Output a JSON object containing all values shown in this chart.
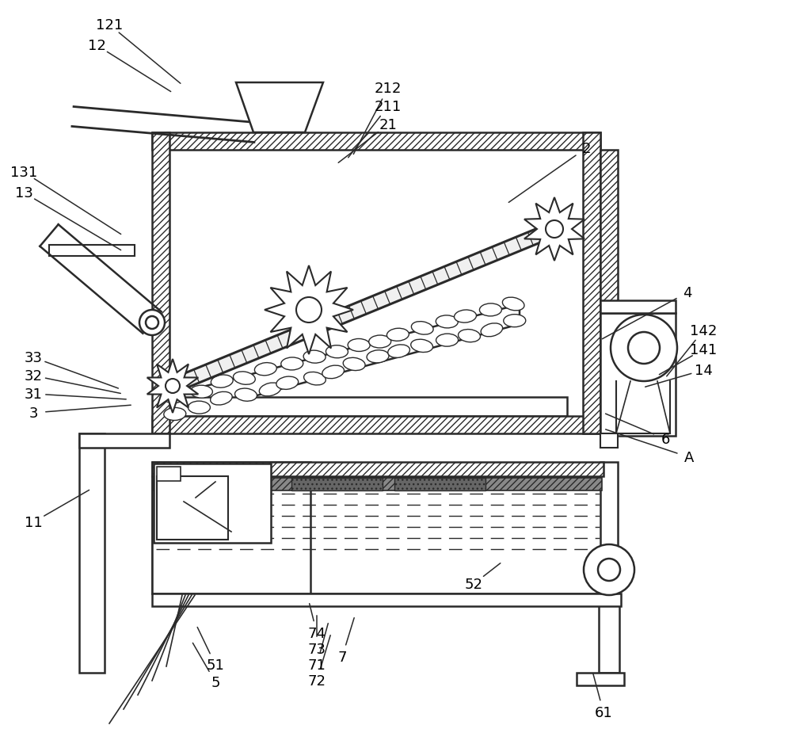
{
  "bg_color": "#ffffff",
  "lc": "#2a2a2a",
  "figsize": [
    10.0,
    9.45
  ],
  "dpi": 100,
  "labels": [
    [
      "121",
      138,
      32,
      230,
      108
    ],
    [
      "12",
      122,
      58,
      218,
      118
    ],
    [
      "131",
      30,
      218,
      155,
      298
    ],
    [
      "13",
      30,
      244,
      155,
      318
    ],
    [
      "2",
      740,
      188,
      640,
      258
    ],
    [
      "212",
      490,
      112,
      445,
      198
    ],
    [
      "211",
      490,
      135,
      438,
      202
    ],
    [
      "21",
      490,
      158,
      425,
      208
    ],
    [
      "4",
      868,
      370,
      758,
      430
    ],
    [
      "142",
      888,
      418,
      840,
      478
    ],
    [
      "141",
      888,
      442,
      830,
      475
    ],
    [
      "14",
      888,
      468,
      812,
      490
    ],
    [
      "33",
      42,
      452,
      152,
      492
    ],
    [
      "32",
      42,
      475,
      155,
      498
    ],
    [
      "31",
      42,
      498,
      162,
      505
    ],
    [
      "3",
      42,
      522,
      168,
      512
    ],
    [
      "11",
      42,
      660,
      115,
      618
    ],
    [
      "6",
      840,
      555,
      762,
      522
    ],
    [
      "A",
      870,
      578,
      762,
      542
    ],
    [
      "52",
      598,
      738,
      634,
      710
    ],
    [
      "51",
      272,
      840,
      248,
      790
    ],
    [
      "5",
      272,
      862,
      242,
      810
    ],
    [
      "74",
      400,
      800,
      390,
      760
    ],
    [
      "73",
      400,
      820,
      400,
      775
    ],
    [
      "71",
      400,
      840,
      415,
      785
    ],
    [
      "7",
      432,
      830,
      448,
      778
    ],
    [
      "72",
      400,
      860,
      418,
      800
    ],
    [
      "61",
      762,
      900,
      748,
      848
    ]
  ]
}
